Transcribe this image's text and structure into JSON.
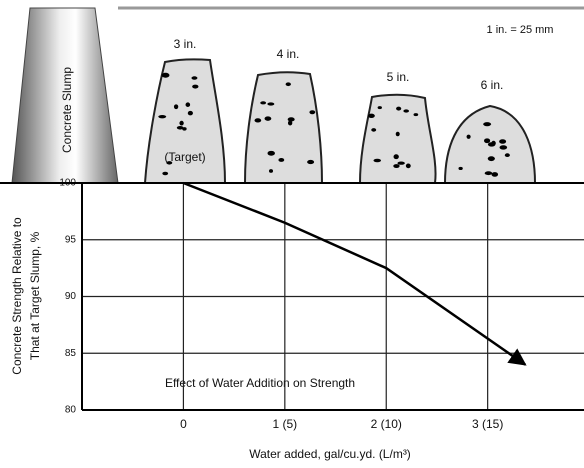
{
  "chart_data": {
    "type": "line",
    "title": "Effect of Water Addition on Strength",
    "y_label": [
      "Concrete Strength Relative to",
      "That at Target Slump, %"
    ],
    "x_label": "Water added, gal/cu.yd. (L/m³)",
    "x": [
      0,
      1,
      2,
      3.37
    ],
    "series": [
      {
        "name": "Strength",
        "color": "#000000",
        "values": [
          100,
          96.5,
          92.5,
          84
        ]
      }
    ],
    "xlim": [
      -1,
      3.95
    ],
    "xticks": [
      0,
      {
        "value": 1,
        "label": "1 (5)"
      },
      {
        "value": 2,
        "label": "2 (10)"
      },
      {
        "value": 3,
        "label": "3 (15)"
      }
    ],
    "ylim": [
      80,
      100
    ],
    "yticks": [
      100,
      95,
      90,
      85,
      80
    ],
    "grid": true,
    "illustration": {
      "cone_label": "Concrete Slump",
      "slumps": [
        "3 in.",
        "4 in.",
        "5 in.",
        "6 in."
      ],
      "target_label": "(Target)",
      "scale_note": "1 in. = 25 mm"
    }
  }
}
